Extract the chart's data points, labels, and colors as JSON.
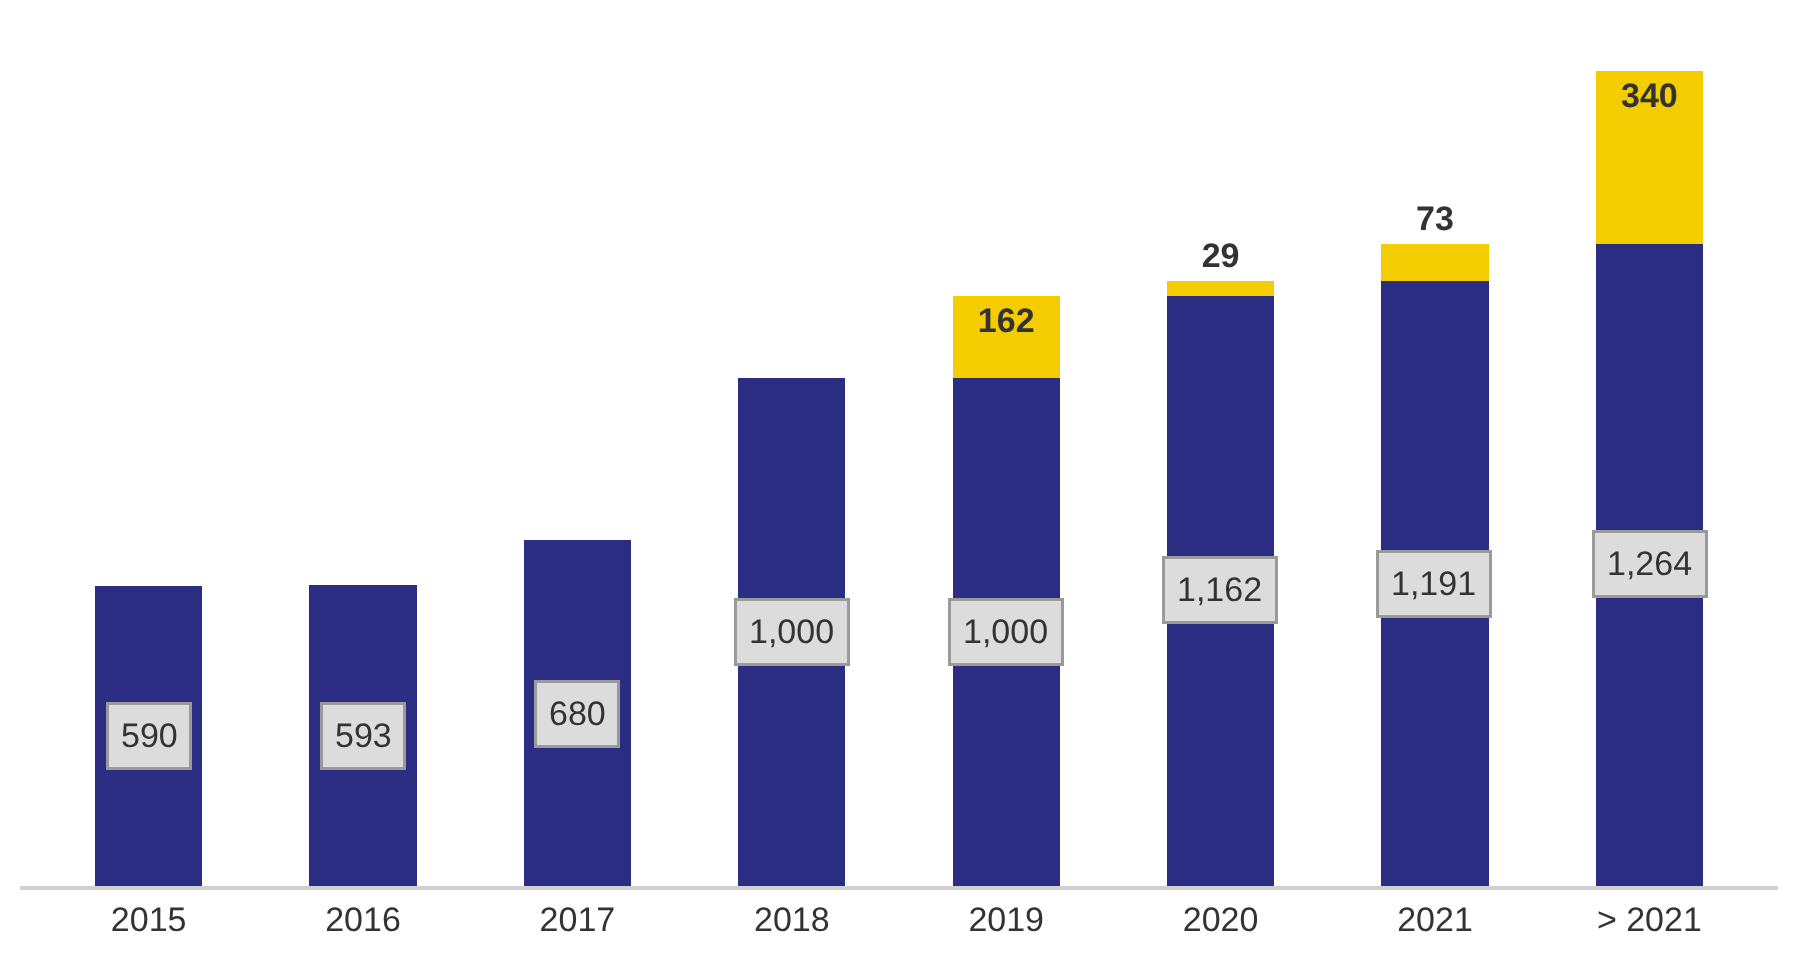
{
  "chart_data": {
    "type": "bar",
    "stacked": true,
    "categories": [
      "2015",
      "2016",
      "2017",
      "2018",
      "2019",
      "2020",
      "2021",
      "> 2021"
    ],
    "series": [
      {
        "color": "#2b2d83",
        "values": [
          590,
          593,
          680,
          1000,
          1000,
          1162,
          1191,
          1264
        ],
        "value_labels": [
          "590",
          "593",
          "680",
          "1,000",
          "1,000",
          "1,162",
          "1,191",
          "1,264"
        ]
      },
      {
        "color": "#f3cd00",
        "values": [
          null,
          null,
          null,
          null,
          162,
          29,
          73,
          340
        ],
        "value_labels": [
          null,
          null,
          null,
          null,
          "162",
          "29",
          "73",
          "340"
        ]
      }
    ],
    "grid": false,
    "tick_labels": "x"
  }
}
